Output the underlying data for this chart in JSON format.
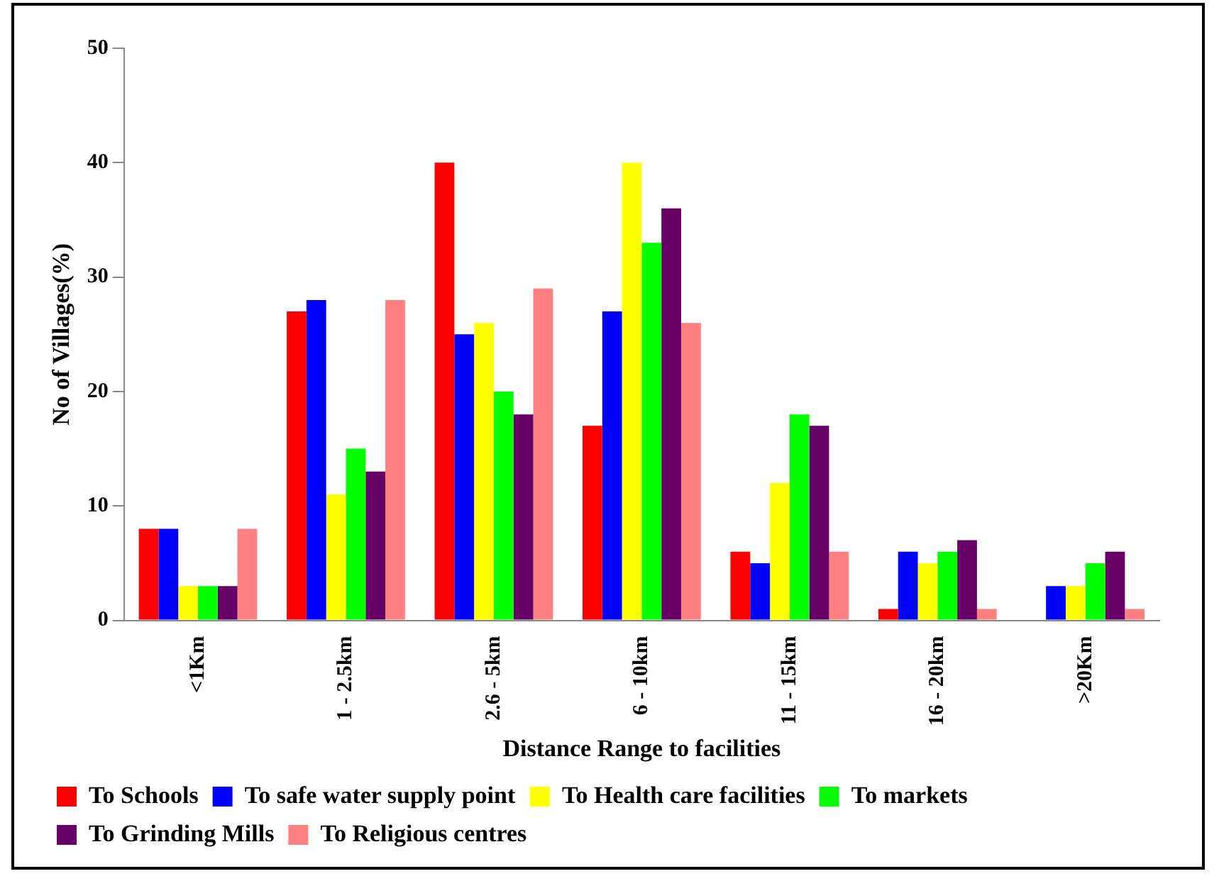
{
  "chart_data": {
    "type": "bar",
    "xlabel": "Distance Range to facilities",
    "ylabel": "No of Villages(%)",
    "categories": [
      "<1Km",
      "1 - 2.5km",
      "2.6 - 5km",
      "6 - 10km",
      "11 - 15km",
      "16 - 20km",
      ">20Km"
    ],
    "series": [
      {
        "name": "To Schools",
        "color": "#ff0000",
        "values": [
          8,
          27,
          40,
          17,
          6,
          1,
          0
        ]
      },
      {
        "name": "To safe water supply point",
        "color": "#0000ff",
        "values": [
          8,
          28,
          25,
          27,
          5,
          6,
          3
        ]
      },
      {
        "name": "To Health care facilities",
        "color": "#ffff00",
        "values": [
          3,
          11,
          26,
          40,
          12,
          5,
          3
        ]
      },
      {
        "name": "To markets",
        "color": "#00ff00",
        "values": [
          3,
          15,
          20,
          33,
          18,
          6,
          5
        ]
      },
      {
        "name": "To Grinding Mills",
        "color": "#660066",
        "values": [
          3,
          13,
          18,
          36,
          17,
          7,
          6
        ]
      },
      {
        "name": "To Religious centres",
        "color": "#ff8080",
        "values": [
          8,
          28,
          29,
          26,
          6,
          1,
          1
        ]
      }
    ],
    "ylim": [
      0,
      50
    ],
    "yticks": [
      0,
      10,
      20,
      30,
      40,
      50
    ],
    "grid": false,
    "legend": "bottom"
  }
}
